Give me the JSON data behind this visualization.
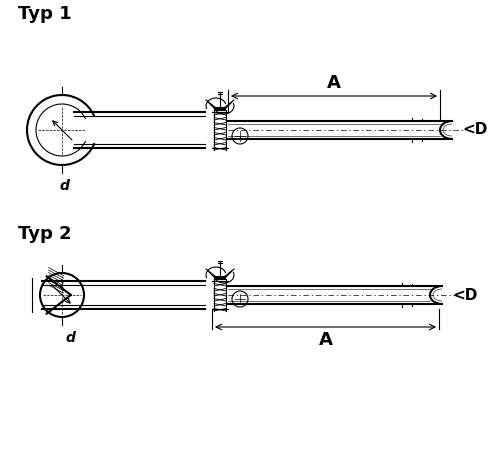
{
  "bg_color": "#ffffff",
  "line_color": "#000000",
  "title1": "Typ 1",
  "title2": "Typ 2",
  "label_A": "A",
  "label_D": "<D",
  "label_d": "d",
  "title_fontsize": 13,
  "label_fontsize": 11,
  "lw": 0.8,
  "lw_thick": 1.5,
  "lw_thin": 0.5
}
